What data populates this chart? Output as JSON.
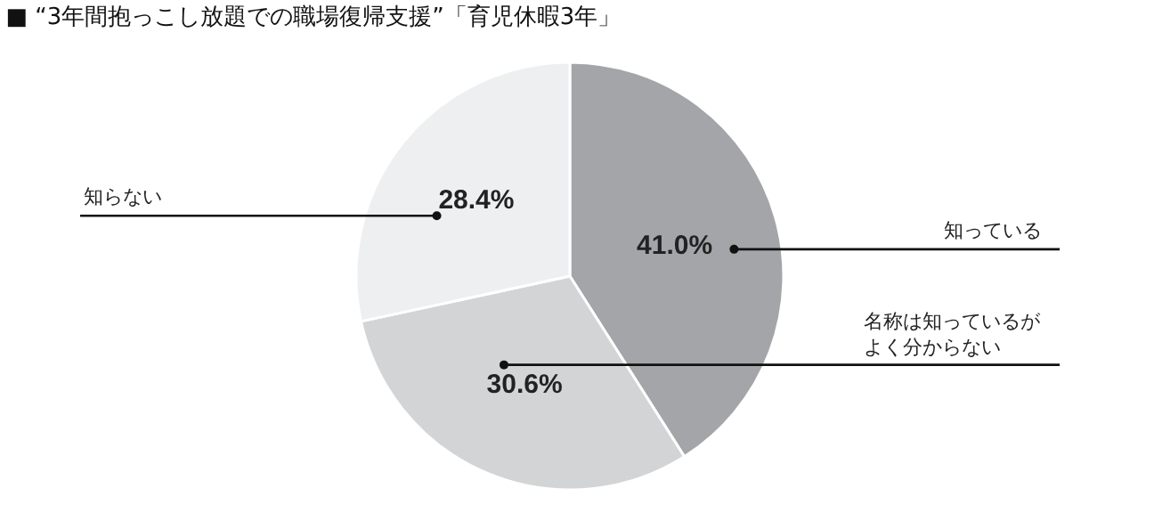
{
  "chart_data": {
    "type": "pie",
    "title": "■ “3年間抱っこし放題での職場復帰支援”「育児休暇3年」",
    "categories": [
      "知っている",
      "名称は知っているがよく分からない",
      "知らない"
    ],
    "values": [
      41.0,
      30.6,
      28.4
    ],
    "value_labels": [
      "41.0%",
      "30.6%",
      "28.4%"
    ],
    "colors": [
      "#a4a5a8",
      "#d3d4d6",
      "#eeeff1"
    ],
    "legend": false
  }
}
